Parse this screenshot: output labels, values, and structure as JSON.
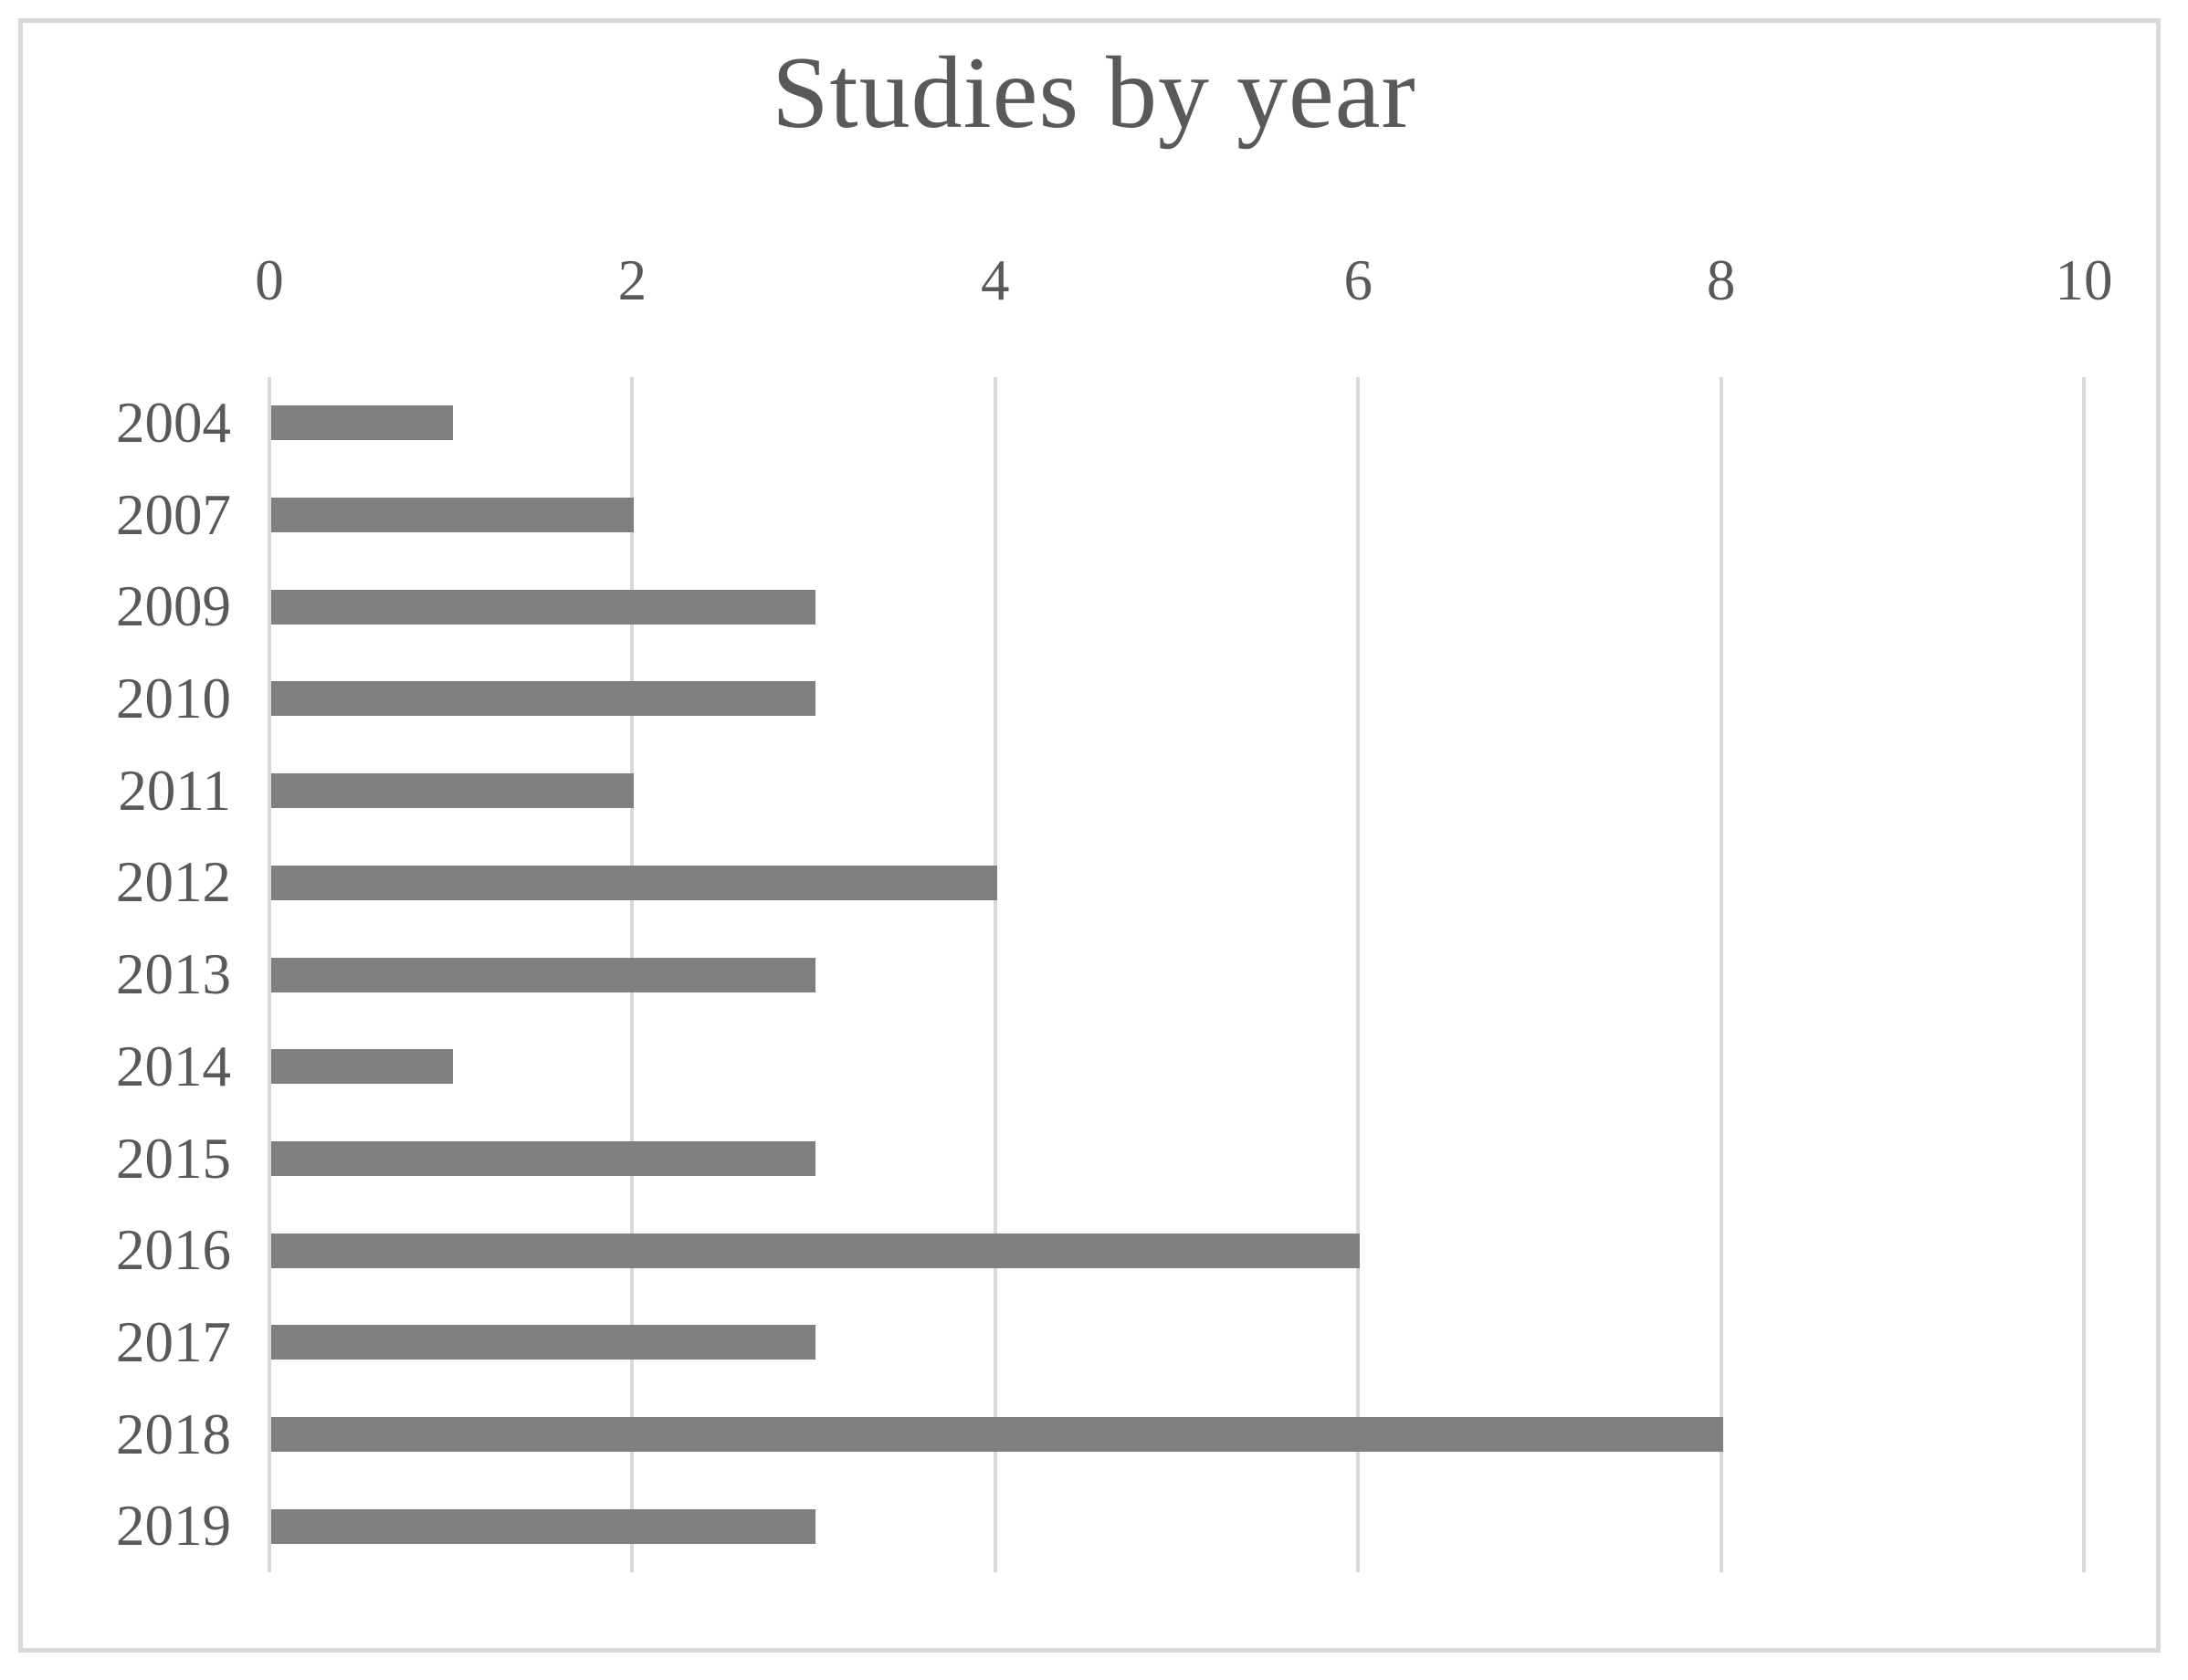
{
  "chart_data": {
    "type": "bar",
    "orientation": "horizontal",
    "title": "Studies by year",
    "categories": [
      "2004",
      "2007",
      "2009",
      "2010",
      "2011",
      "2012",
      "2013",
      "2014",
      "2015",
      "2016",
      "2017",
      "2018",
      "2019"
    ],
    "values": [
      1,
      2,
      3,
      3,
      2,
      4,
      3,
      1,
      3,
      6,
      3,
      8,
      3
    ],
    "xlabel": "",
    "ylabel": "",
    "xlim": [
      0,
      10
    ],
    "x_ticks": [
      0,
      2,
      4,
      6,
      8,
      10
    ],
    "grid": "vertical-only",
    "legend": "none",
    "colors": {
      "bar": "#7f7f7f",
      "text": "#595959",
      "gridline": "#d9d9d9",
      "frame_border": "#d9d9d9",
      "background": "#ffffff"
    }
  }
}
